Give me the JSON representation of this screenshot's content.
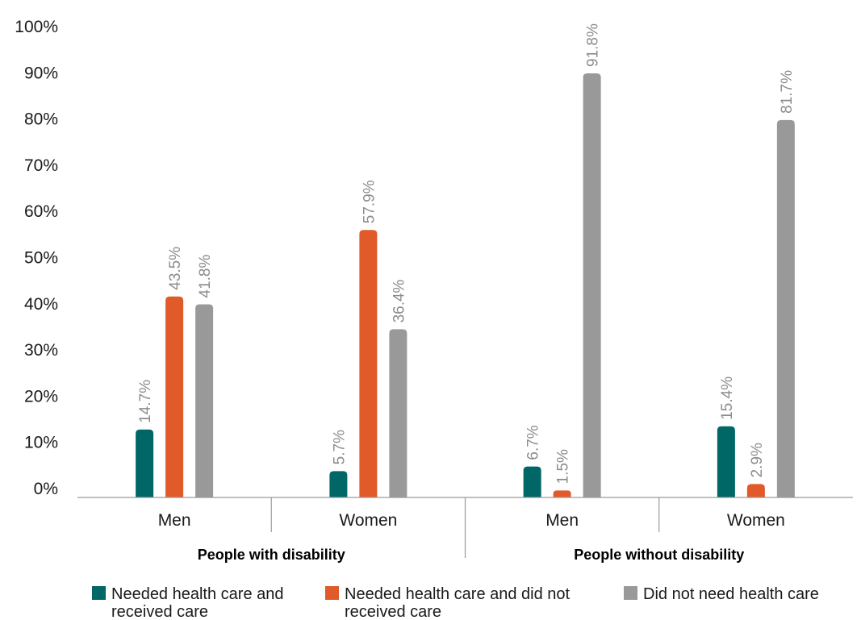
{
  "chart_data": {
    "type": "bar",
    "title": "",
    "xlabel": "",
    "ylabel": "",
    "ylim": [
      0,
      100
    ],
    "ytick_values": [
      0,
      10,
      20,
      30,
      40,
      50,
      60,
      70,
      80,
      90,
      100
    ],
    "ytick_labels": [
      "0%",
      "10%",
      "20%",
      "30%",
      "40%",
      "50%",
      "60%",
      "70%",
      "80%",
      "90%",
      "100%"
    ],
    "groups": [
      {
        "label": "People with disability",
        "categories": [
          "Men",
          "Women"
        ]
      },
      {
        "label": "People without disability",
        "categories": [
          "Men",
          "Women"
        ]
      }
    ],
    "categories": [
      "Men",
      "Women",
      "Men",
      "Women"
    ],
    "series": [
      {
        "name": "Needed health care and received care",
        "legend_lines": [
          "Needed health care and",
          "received care"
        ],
        "color": "#006666",
        "values": [
          14.7,
          5.7,
          6.7,
          15.4
        ],
        "labels": [
          "14.7%",
          "5.7%",
          "6.7%",
          "15.4%"
        ]
      },
      {
        "name": "Needed health care and did not received care",
        "legend_lines": [
          "Needed health care and did not",
          "received care"
        ],
        "color": "#e05a2a",
        "values": [
          43.5,
          57.9,
          1.5,
          2.9
        ],
        "labels": [
          "43.5%",
          "57.9%",
          "1.5%",
          "2.9%"
        ]
      },
      {
        "name": "Did not need health care",
        "legend_lines": [
          "Did not need health care"
        ],
        "color": "#999999",
        "values": [
          41.8,
          36.4,
          91.8,
          81.7
        ],
        "labels": [
          "41.8%",
          "36.4%",
          "91.8%",
          "81.7%"
        ]
      }
    ],
    "grid": false,
    "legend_position": "bottom"
  }
}
